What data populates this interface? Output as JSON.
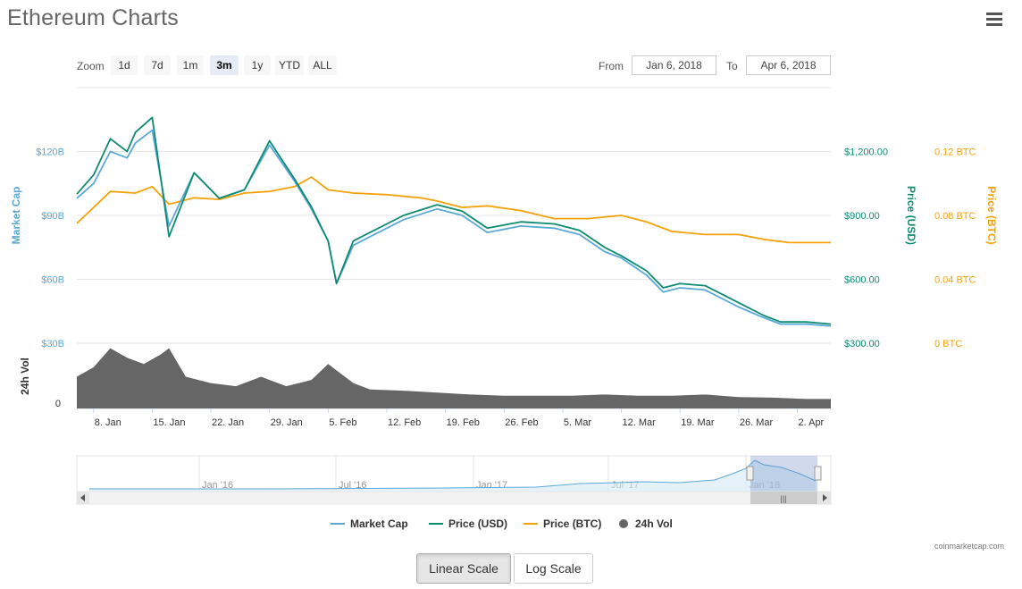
{
  "title": "Ethereum Charts",
  "menu_icon": "hamburger-menu-icon",
  "zoom": {
    "label": "Zoom",
    "buttons": [
      "1d",
      "7d",
      "1m",
      "3m",
      "1y",
      "YTD",
      "ALL"
    ],
    "active": "3m"
  },
  "range": {
    "from_label": "From",
    "from_value": "Jan 6, 2018",
    "to_label": "To",
    "to_value": "Apr 6, 2018"
  },
  "colors": {
    "market_cap": "#5aa9d8",
    "price_usd": "#0f8b72",
    "price_btc": "#f5a20a",
    "volume": "#666666"
  },
  "chart_data": {
    "type": "line",
    "x_ticks": [
      "8. Jan",
      "15. Jan",
      "22. Jan",
      "29. Jan",
      "5. Feb",
      "12. Feb",
      "19. Feb",
      "26. Feb",
      "5. Mar",
      "12. Mar",
      "19. Mar",
      "26. Mar",
      "2. Apr"
    ],
    "xlim": [
      "2018-01-06",
      "2018-04-06"
    ],
    "market_cap_axis": {
      "label": "Market Cap",
      "ticks": [
        "$30B",
        "$60B",
        "$90B",
        "$120B"
      ],
      "ylim": [
        30,
        150
      ]
    },
    "price_usd_axis": {
      "label": "Price (USD)",
      "ticks": [
        "$300.00",
        "$600.00",
        "$900.00",
        "$1,200.00"
      ],
      "ylim": [
        300,
        1500
      ]
    },
    "price_btc_axis": {
      "label": "Price (BTC)",
      "ticks": [
        "0 BTC",
        "0.04 BTC",
        "0.08 BTC",
        "0.12 BTC"
      ],
      "ylim": [
        0,
        0.16
      ]
    },
    "volume_axis": {
      "label": "24h Vol",
      "ticks": [
        "0"
      ]
    },
    "series": [
      {
        "name": "Market Cap",
        "unit": "USD billions",
        "x": [
          "2018-01-06",
          "2018-01-08",
          "2018-01-10",
          "2018-01-12",
          "2018-01-13",
          "2018-01-15",
          "2018-01-17",
          "2018-01-20",
          "2018-01-23",
          "2018-01-26",
          "2018-01-29",
          "2018-02-01",
          "2018-02-03",
          "2018-02-05",
          "2018-02-06",
          "2018-02-08",
          "2018-02-10",
          "2018-02-14",
          "2018-02-18",
          "2018-02-21",
          "2018-02-24",
          "2018-02-28",
          "2018-03-04",
          "2018-03-07",
          "2018-03-10",
          "2018-03-12",
          "2018-03-15",
          "2018-03-17",
          "2018-03-19",
          "2018-03-22",
          "2018-03-26",
          "2018-03-29",
          "2018-03-31",
          "2018-04-03",
          "2018-04-06"
        ],
        "values": [
          98,
          105,
          120,
          117,
          124,
          130,
          85,
          110,
          98,
          102,
          123,
          106,
          93,
          78,
          58,
          76,
          80,
          88,
          93,
          90,
          82,
          85,
          84,
          81,
          73,
          70,
          62,
          54,
          56,
          55,
          47,
          42,
          39,
          39,
          38
        ]
      },
      {
        "name": "Price (USD)",
        "unit": "USD",
        "x": [
          "2018-01-06",
          "2018-01-08",
          "2018-01-10",
          "2018-01-12",
          "2018-01-13",
          "2018-01-15",
          "2018-01-17",
          "2018-01-20",
          "2018-01-23",
          "2018-01-26",
          "2018-01-29",
          "2018-02-01",
          "2018-02-03",
          "2018-02-05",
          "2018-02-06",
          "2018-02-08",
          "2018-02-10",
          "2018-02-14",
          "2018-02-18",
          "2018-02-21",
          "2018-02-24",
          "2018-02-28",
          "2018-03-04",
          "2018-03-07",
          "2018-03-10",
          "2018-03-12",
          "2018-03-15",
          "2018-03-17",
          "2018-03-19",
          "2018-03-22",
          "2018-03-26",
          "2018-03-29",
          "2018-03-31",
          "2018-04-03",
          "2018-04-06"
        ],
        "values": [
          1000,
          1090,
          1260,
          1200,
          1290,
          1360,
          800,
          1100,
          980,
          1020,
          1250,
          1070,
          940,
          780,
          580,
          780,
          820,
          900,
          950,
          920,
          840,
          870,
          860,
          830,
          750,
          710,
          640,
          560,
          580,
          570,
          490,
          430,
          400,
          400,
          390
        ]
      },
      {
        "name": "Price (BTC)",
        "unit": "BTC",
        "x": [
          "2018-01-06",
          "2018-01-08",
          "2018-01-10",
          "2018-01-13",
          "2018-01-15",
          "2018-01-17",
          "2018-01-20",
          "2018-01-23",
          "2018-01-26",
          "2018-01-29",
          "2018-02-01",
          "2018-02-03",
          "2018-02-05",
          "2018-02-08",
          "2018-02-12",
          "2018-02-16",
          "2018-02-18",
          "2018-02-21",
          "2018-02-24",
          "2018-02-28",
          "2018-03-04",
          "2018-03-08",
          "2018-03-12",
          "2018-03-15",
          "2018-03-18",
          "2018-03-22",
          "2018-03-26",
          "2018-03-29",
          "2018-04-01",
          "2018-04-03",
          "2018-04-06"
        ],
        "values": [
          0.075,
          0.085,
          0.095,
          0.094,
          0.098,
          0.087,
          0.091,
          0.09,
          0.094,
          0.095,
          0.098,
          0.104,
          0.096,
          0.094,
          0.093,
          0.091,
          0.089,
          0.085,
          0.086,
          0.083,
          0.078,
          0.078,
          0.08,
          0.076,
          0.07,
          0.068,
          0.068,
          0.065,
          0.063,
          0.063,
          0.063
        ]
      },
      {
        "name": "24h Vol",
        "unit": "relative",
        "x": [
          "2018-01-06",
          "2018-01-08",
          "2018-01-10",
          "2018-01-12",
          "2018-01-14",
          "2018-01-16",
          "2018-01-17",
          "2018-01-19",
          "2018-01-22",
          "2018-01-25",
          "2018-01-28",
          "2018-01-31",
          "2018-02-03",
          "2018-02-05",
          "2018-02-06",
          "2018-02-08",
          "2018-02-10",
          "2018-02-14",
          "2018-02-18",
          "2018-02-22",
          "2018-02-26",
          "2018-03-02",
          "2018-03-06",
          "2018-03-10",
          "2018-03-14",
          "2018-03-18",
          "2018-03-22",
          "2018-03-26",
          "2018-03-30",
          "2018-04-03",
          "2018-04-06"
        ],
        "values": [
          0.5,
          0.65,
          0.95,
          0.8,
          0.7,
          0.85,
          0.95,
          0.5,
          0.4,
          0.35,
          0.5,
          0.35,
          0.45,
          0.7,
          0.6,
          0.4,
          0.3,
          0.28,
          0.25,
          0.22,
          0.2,
          0.2,
          0.2,
          0.22,
          0.2,
          0.2,
          0.22,
          0.18,
          0.17,
          0.15,
          0.15
        ]
      }
    ],
    "navigator": {
      "ticks": [
        "Jan '16",
        "Jul '16",
        "Jan '17",
        "Jul '17",
        "Jan '18"
      ],
      "scrollbar_grip": "|||"
    },
    "legend": [
      "Market Cap",
      "Price (USD)",
      "Price (BTC)",
      "24h Vol"
    ],
    "legend_position": "bottom-center",
    "grid": true
  },
  "credit": "coinmarketcap.com",
  "scale_buttons": {
    "linear": "Linear Scale",
    "log": "Log Scale",
    "active": "Linear Scale"
  }
}
